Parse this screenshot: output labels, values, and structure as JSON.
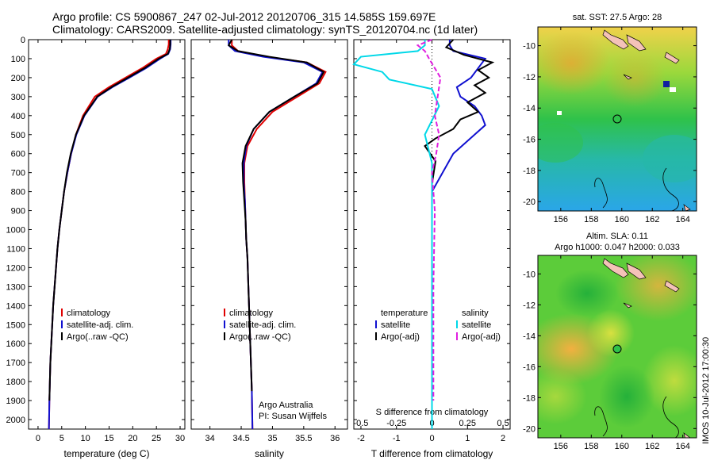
{
  "header": {
    "line1": "Argo profile: CS 5900867_247 02-Jul-2012 20120706_315 14.585S 159.697E",
    "line2": "Climatology: CARS2009. Satellite-adjusted climatology: synTS_20120704.nc (1d later)"
  },
  "side_label": "IMOS 10-Jul-2012 17:00:30",
  "colors": {
    "climatology": "#e00000",
    "satellite": "#1010d0",
    "argo": "#000000",
    "sal_satellite": "#00d8e8",
    "sal_argo": "#e020e0"
  },
  "chart_data": [
    {
      "type": "line",
      "panel": "temperature",
      "xlabel": "temperature (deg C)",
      "ylabel": "",
      "xlim": [
        -2,
        31
      ],
      "ylim": [
        2050,
        0
      ],
      "xticks": [
        "0",
        "5",
        "10",
        "15",
        "20",
        "25",
        "30"
      ],
      "xtick_values": [
        0,
        5,
        10,
        15,
        20,
        25,
        30
      ],
      "yticks": [
        "0",
        "100",
        "200",
        "300",
        "400",
        "500",
        "600",
        "700",
        "800",
        "900",
        "1000",
        "1100",
        "1200",
        "1300",
        "1400",
        "1500",
        "1600",
        "1700",
        "1800",
        "1900",
        "2000"
      ],
      "ytick_values": [
        0,
        100,
        200,
        300,
        400,
        500,
        600,
        700,
        800,
        900,
        1000,
        1100,
        1200,
        1300,
        1400,
        1500,
        1600,
        1700,
        1800,
        1900,
        2000
      ],
      "legend": [
        "climatology",
        "satellite-adj. clim.",
        "Argo(..raw -QC)"
      ],
      "series": [
        {
          "name": "climatology",
          "color": "#e00000",
          "x": [
            27.6,
            27.6,
            27.4,
            27,
            25,
            22,
            18.5,
            15,
            12,
            9.5,
            8,
            7,
            6.2,
            5.5,
            5,
            4.5,
            4.1,
            3.8,
            3.5,
            3.2,
            3,
            2.8,
            2.6,
            2.5,
            2.4,
            2.3
          ],
          "y": [
            0,
            25,
            50,
            75,
            100,
            150,
            200,
            250,
            300,
            400,
            500,
            600,
            700,
            800,
            900,
            1000,
            1100,
            1200,
            1300,
            1400,
            1500,
            1600,
            1700,
            1800,
            1900,
            2050
          ]
        },
        {
          "name": "satellite-adj. clim.",
          "color": "#1010d0",
          "x": [
            28,
            28,
            27.9,
            27.5,
            25.8,
            22.8,
            19.3,
            15.7,
            12.6,
            9.8,
            8.1,
            7,
            6.2,
            5.5,
            5,
            4.5,
            4.1,
            3.8,
            3.5,
            3.2,
            3,
            2.8,
            2.6,
            2.5,
            2.4,
            2.3
          ],
          "y": [
            0,
            25,
            50,
            75,
            100,
            150,
            200,
            250,
            300,
            400,
            500,
            600,
            700,
            800,
            900,
            1000,
            1100,
            1200,
            1300,
            1400,
            1500,
            1600,
            1700,
            1800,
            1900,
            2050
          ]
        },
        {
          "name": "Argo(..raw -QC)",
          "color": "#000000",
          "x": [
            27.9,
            27.9,
            27.8,
            27.4,
            25.5,
            22.5,
            19,
            15.5,
            12.5,
            9.7,
            8,
            6.9,
            6.1,
            5.5,
            5,
            4.5,
            4.1,
            3.8,
            3.5,
            3.2,
            3,
            2.8,
            2.6,
            2.5,
            2.4
          ],
          "y": [
            0,
            25,
            50,
            75,
            100,
            150,
            200,
            250,
            300,
            400,
            500,
            600,
            700,
            800,
            900,
            1000,
            1100,
            1200,
            1300,
            1400,
            1500,
            1600,
            1700,
            1800,
            1900
          ]
        }
      ]
    },
    {
      "type": "line",
      "panel": "salinity",
      "xlabel": "salinity",
      "xlim": [
        33.7,
        36.2
      ],
      "ylim": [
        2050,
        0
      ],
      "xticks": [
        "34",
        "34.5",
        "35",
        "35.5",
        "36"
      ],
      "xtick_values": [
        34,
        34.5,
        35,
        35.5,
        36
      ],
      "legend": [
        "climatology",
        "satellite-adj. clim.",
        "Argo(..raw -QC)"
      ],
      "annotation": [
        "Argo Australia",
        "PI: Susan Wijffels"
      ],
      "series": [
        {
          "name": "climatology",
          "color": "#e00000",
          "x": [
            34.35,
            34.35,
            34.45,
            34.9,
            35.55,
            35.85,
            35.75,
            35.4,
            35,
            34.75,
            34.6,
            34.55,
            34.55,
            34.56,
            34.57,
            34.58,
            34.6,
            34.61,
            34.62,
            34.63,
            34.64,
            34.65,
            34.66,
            34.67,
            34.68
          ],
          "y": [
            0,
            30,
            60,
            90,
            120,
            170,
            230,
            300,
            380,
            470,
            560,
            650,
            750,
            850,
            950,
            1050,
            1150,
            1250,
            1350,
            1450,
            1550,
            1650,
            1750,
            1850,
            2050
          ]
        },
        {
          "name": "satellite-adj. clim.",
          "color": "#1010d0",
          "x": [
            34.3,
            34.3,
            34.4,
            34.85,
            35.5,
            35.8,
            35.7,
            35.35,
            34.95,
            34.7,
            34.58,
            34.54,
            34.54,
            34.56,
            34.57,
            34.58,
            34.6,
            34.61,
            34.62,
            34.63,
            34.64,
            34.65,
            34.66,
            34.67,
            34.68
          ],
          "y": [
            0,
            30,
            60,
            90,
            120,
            170,
            230,
            300,
            380,
            470,
            560,
            650,
            750,
            850,
            950,
            1050,
            1150,
            1250,
            1350,
            1450,
            1550,
            1650,
            1750,
            1850,
            2050
          ]
        },
        {
          "name": "Argo(..raw -QC)",
          "color": "#000000",
          "x": [
            34.35,
            34.3,
            34.45,
            34.95,
            35.55,
            35.82,
            35.72,
            35.35,
            34.95,
            34.7,
            34.57,
            34.52,
            34.53,
            34.55,
            34.57,
            34.58,
            34.6,
            34.61,
            34.62,
            34.63,
            34.64,
            34.65,
            34.66,
            34.67
          ],
          "y": [
            0,
            30,
            60,
            90,
            120,
            170,
            230,
            300,
            380,
            470,
            560,
            650,
            750,
            850,
            950,
            1050,
            1150,
            1250,
            1350,
            1450,
            1550,
            1650,
            1750,
            1850
          ]
        }
      ]
    },
    {
      "type": "line",
      "panel": "difference",
      "xlabel": "T difference from climatology",
      "xlabel_top": "S difference from climatology",
      "xlim": [
        -2.2,
        2.2
      ],
      "ylim": [
        2050,
        0
      ],
      "xticks": [
        "-2",
        "-1",
        "0",
        "1",
        "2"
      ],
      "xtick_values": [
        -2,
        -1,
        0,
        1,
        2
      ],
      "s_xticks": [
        "-0.5",
        "-0.25",
        "0",
        "0.25",
        "0.5"
      ],
      "s_xtick_values": [
        -0.5,
        -0.25,
        0,
        0.25,
        0.5
      ],
      "legend_temperature": {
        "title": "temperature",
        "items": [
          "satellite",
          "Argo(-adj)"
        ]
      },
      "legend_salinity": {
        "title": "salinity",
        "items": [
          "satellite",
          "Argo(-adj)"
        ]
      },
      "series": [
        {
          "name": "temperature satellite",
          "color": "#1010d0",
          "x": [
            0.5,
            0.5,
            0.6,
            1.5,
            1.3,
            1.1,
            0.7,
            0.8,
            1.2,
            1.4,
            1.5,
            1.2,
            0.9,
            0.6,
            0.3,
            0,
            0,
            0,
            0,
            0,
            0
          ],
          "y": [
            0,
            30,
            60,
            100,
            150,
            200,
            250,
            300,
            350,
            400,
            450,
            500,
            550,
            600,
            700,
            800,
            1000,
            1200,
            1500,
            1800,
            2050
          ]
        },
        {
          "name": "temperature Argo(-adj)",
          "color": "#000000",
          "x": [
            0.6,
            0.4,
            0.9,
            1.7,
            1.3,
            1.6,
            1.2,
            1.5,
            1.0,
            1.3,
            0.8,
            0.6,
            0.1,
            -0.2,
            0.1,
            0,
            0,
            0,
            0
          ],
          "y": [
            0,
            40,
            80,
            120,
            160,
            200,
            240,
            280,
            330,
            380,
            420,
            470,
            520,
            560,
            640,
            760,
            1000,
            1500,
            1900
          ]
        },
        {
          "name": "salinity satellite",
          "color": "#00d8e8",
          "x": [
            -0.05,
            -0.05,
            -0.1,
            -0.5,
            -0.55,
            -0.35,
            -0.3,
            0,
            0.05,
            -0.05,
            0,
            0,
            0,
            0,
            0
          ],
          "y": [
            0,
            30,
            60,
            90,
            130,
            170,
            210,
            260,
            350,
            500,
            650,
            800,
            1200,
            1600,
            2050
          ]
        },
        {
          "name": "salinity Argo(-adj)",
          "color": "#e020e0",
          "x": [
            0,
            -0.1,
            -0.05,
            -0.02,
            0.02,
            0.06,
            0.04,
            0.02,
            0.05,
            0.03,
            0,
            0.02,
            0.01,
            0.01
          ],
          "y": [
            0,
            30,
            60,
            100,
            150,
            200,
            300,
            400,
            500,
            600,
            700,
            900,
            1300,
            1900
          ]
        }
      ]
    },
    {
      "type": "heatmap",
      "panel": "sst_map",
      "title": "sat. SST: 27.5 Argo: 28",
      "xticks": [
        "156",
        "158",
        "160",
        "162",
        "164"
      ],
      "yticks": [
        "-10",
        "-12",
        "-14",
        "-16",
        "-18",
        "-20"
      ],
      "xlim": [
        154.5,
        164.9
      ],
      "ylim": [
        -20.6,
        -8.8
      ],
      "marker": {
        "lon": 159.697,
        "lat": -14.585
      }
    },
    {
      "type": "heatmap",
      "panel": "sla_map",
      "title": "Altim. SLA: 0.11",
      "subtitle": "Argo h1000: 0.047 h2000: 0.033",
      "xticks": [
        "156",
        "158",
        "160",
        "162",
        "164"
      ],
      "yticks": [
        "-10",
        "-12",
        "-14",
        "-16",
        "-18",
        "-20"
      ],
      "xlim": [
        154.5,
        164.9
      ],
      "ylim": [
        -20.6,
        -8.8
      ],
      "marker": {
        "lon": 159.697,
        "lat": -14.585
      }
    }
  ]
}
